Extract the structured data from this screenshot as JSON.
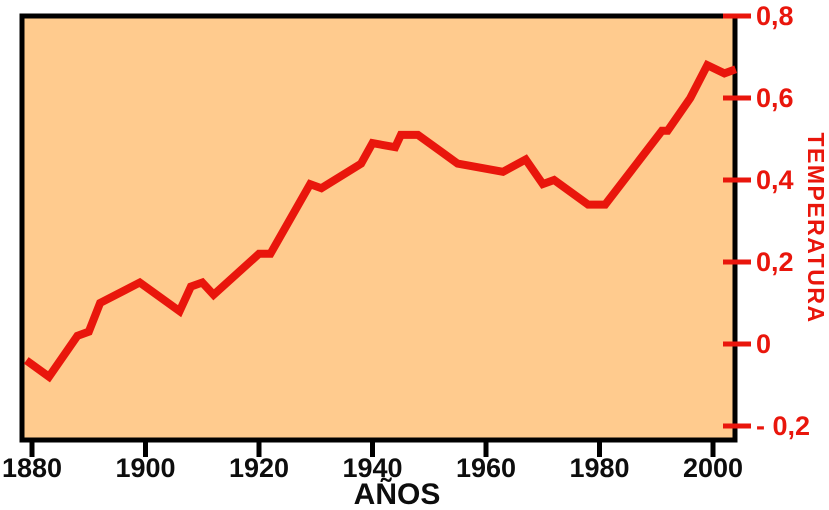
{
  "page": {
    "background": "#ffffff"
  },
  "colors": {
    "plot_bg": "#ffcb8e",
    "axis_black": "#000000",
    "text_black": "#0d0d0d",
    "accent_red": "#e9160c"
  },
  "chart_data": {
    "type": "line",
    "title": "",
    "xlabel": "AÑOS",
    "ylabel": "TEMPERATURA",
    "grid": false,
    "legend": null,
    "xlim": [
      1878,
      2004
    ],
    "ylim": [
      -0.235,
      0.795
    ],
    "x_ticks": [
      {
        "label": "1880",
        "year": 1880
      },
      {
        "label": "1900",
        "year": 1900
      },
      {
        "label": "1920",
        "year": 1920
      },
      {
        "label": "1940",
        "year": 1940
      },
      {
        "label": "1960",
        "year": 1960
      },
      {
        "label": "1980",
        "year": 1980
      },
      {
        "label": "2000",
        "year": 2000
      }
    ],
    "y_ticks": [
      {
        "label": "0,8",
        "value": 0.8
      },
      {
        "label": "0,6",
        "value": 0.6
      },
      {
        "label": "0,4",
        "value": 0.4
      },
      {
        "label": "0,2",
        "value": 0.2
      },
      {
        "label": "0",
        "value": 0.0
      },
      {
        "label": "- 0,2",
        "value": -0.2
      }
    ],
    "series": [
      {
        "name": "temperatura",
        "color": "#e9160c",
        "points": [
          [
            1879,
            -0.04
          ],
          [
            1883,
            -0.08
          ],
          [
            1888,
            0.02
          ],
          [
            1890,
            0.03
          ],
          [
            1892,
            0.1
          ],
          [
            1899,
            0.15
          ],
          [
            1906,
            0.08
          ],
          [
            1908,
            0.14
          ],
          [
            1910,
            0.15
          ],
          [
            1912,
            0.12
          ],
          [
            1920,
            0.22
          ],
          [
            1922,
            0.22
          ],
          [
            1929,
            0.39
          ],
          [
            1931,
            0.38
          ],
          [
            1938,
            0.44
          ],
          [
            1940,
            0.49
          ],
          [
            1944,
            0.48
          ],
          [
            1945,
            0.51
          ],
          [
            1948,
            0.51
          ],
          [
            1952,
            0.47
          ],
          [
            1955,
            0.44
          ],
          [
            1963,
            0.42
          ],
          [
            1967,
            0.45
          ],
          [
            1970,
            0.39
          ],
          [
            1972,
            0.4
          ],
          [
            1978,
            0.34
          ],
          [
            1981,
            0.34
          ],
          [
            1991,
            0.52
          ],
          [
            1992,
            0.52
          ],
          [
            1996,
            0.6
          ],
          [
            1999,
            0.68
          ],
          [
            2002,
            0.66
          ],
          [
            2004,
            0.67
          ]
        ]
      }
    ]
  }
}
